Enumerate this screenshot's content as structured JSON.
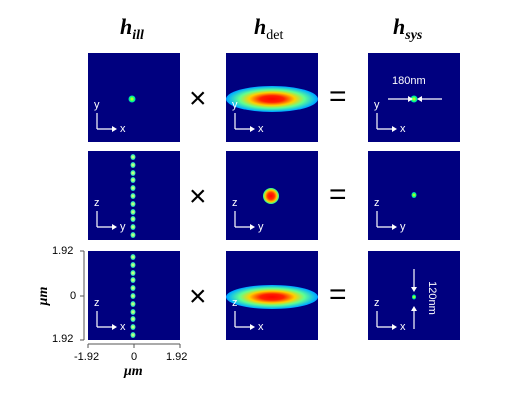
{
  "headers": {
    "ill": {
      "main": "h",
      "sub": "ill"
    },
    "det": {
      "main": "h",
      "sub": "det"
    },
    "sys": {
      "main": "h",
      "sub": "sys"
    }
  },
  "operators": {
    "times": "×",
    "equals": "="
  },
  "rows": [
    {
      "axes": {
        "vertical": "y",
        "horizontal": "x"
      }
    },
    {
      "axes": {
        "vertical": "z",
        "horizontal": "y"
      }
    },
    {
      "axes": {
        "vertical": "z",
        "horizontal": "x"
      }
    }
  ],
  "annotations": {
    "xy_fwhm": "180nm",
    "xz_fwhm": "120nm"
  },
  "axis": {
    "left_ticks": [
      "1.92",
      "0",
      "1.92"
    ],
    "bottom_ticks": [
      "-1.92",
      "0",
      "1.92"
    ],
    "unit": "μm"
  },
  "colors": {
    "background": "#00007f",
    "hot": "#ff0000",
    "cold": "#00007f"
  }
}
